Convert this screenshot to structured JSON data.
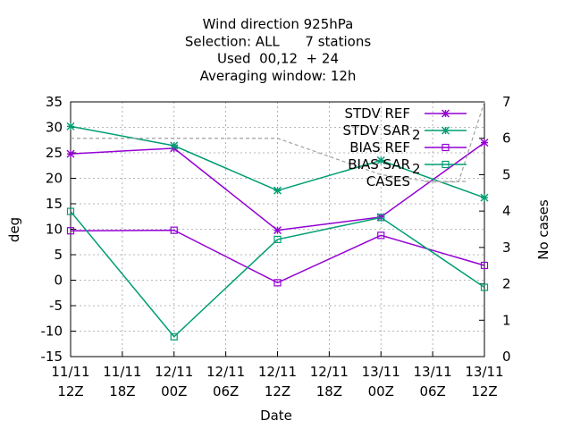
{
  "chart_data": {
    "type": "line",
    "title_lines": [
      "Wind direction 925hPa",
      "Selection: ALL      7 stations",
      "Used  00,12  + 24",
      "Averaging window: 12h"
    ],
    "xlabel": "Date",
    "ylabel": "deg",
    "y2label": "No cases",
    "x_tick_labels": [
      [
        "11/11",
        "12Z"
      ],
      [
        "11/11",
        "18Z"
      ],
      [
        "12/11",
        "00Z"
      ],
      [
        "12/11",
        "06Z"
      ],
      [
        "12/11",
        "12Z"
      ],
      [
        "12/11",
        "18Z"
      ],
      [
        "13/11",
        "00Z"
      ],
      [
        "13/11",
        "06Z"
      ],
      [
        "13/11",
        "12Z"
      ]
    ],
    "x_hours": [
      0,
      6,
      12,
      18,
      24,
      30,
      36,
      42,
      48
    ],
    "ylim": [
      -15,
      35
    ],
    "yticks": [
      -15,
      -10,
      -5,
      0,
      5,
      10,
      15,
      20,
      25,
      30,
      35
    ],
    "y2lim": [
      0,
      7
    ],
    "y2ticks": [
      0,
      1,
      2,
      3,
      4,
      5,
      6,
      7
    ],
    "grid": true,
    "legend_position": "top-right",
    "series": [
      {
        "name": "STDV REF",
        "axis": "y",
        "color": "#9400d3",
        "marker": "star",
        "points": [
          [
            0,
            24.8
          ],
          [
            12,
            25.9
          ],
          [
            24,
            9.8
          ],
          [
            36,
            12.4
          ],
          [
            48,
            27.0
          ]
        ]
      },
      {
        "name": "STDV SAR",
        "name_subscript": "2",
        "axis": "y",
        "color": "#009e73",
        "marker": "star",
        "points": [
          [
            0,
            30.2
          ],
          [
            12,
            26.4
          ],
          [
            24,
            17.6
          ],
          [
            36,
            23.5
          ],
          [
            48,
            16.2
          ]
        ]
      },
      {
        "name": "BIAS REF",
        "axis": "y",
        "color": "#9400d3",
        "marker": "square",
        "points": [
          [
            0,
            9.7
          ],
          [
            12,
            9.8
          ],
          [
            24,
            -0.5
          ],
          [
            36,
            8.8
          ],
          [
            48,
            2.9
          ]
        ]
      },
      {
        "name": "BIAS SAR",
        "name_subscript": "2",
        "axis": "y",
        "color": "#009e73",
        "marker": "square",
        "points": [
          [
            0,
            13.5
          ],
          [
            12,
            -11.1
          ],
          [
            24,
            8.0
          ],
          [
            36,
            12.3
          ],
          [
            48,
            -1.4
          ]
        ]
      },
      {
        "name": "CASES",
        "axis": "y2",
        "color": "#a0a0a4",
        "dashed": true,
        "marker": "none",
        "points": [
          [
            0,
            6
          ],
          [
            24,
            6
          ],
          [
            36,
            5
          ],
          [
            42,
            4.8
          ],
          [
            45,
            4.8
          ],
          [
            48,
            7
          ]
        ]
      }
    ]
  }
}
